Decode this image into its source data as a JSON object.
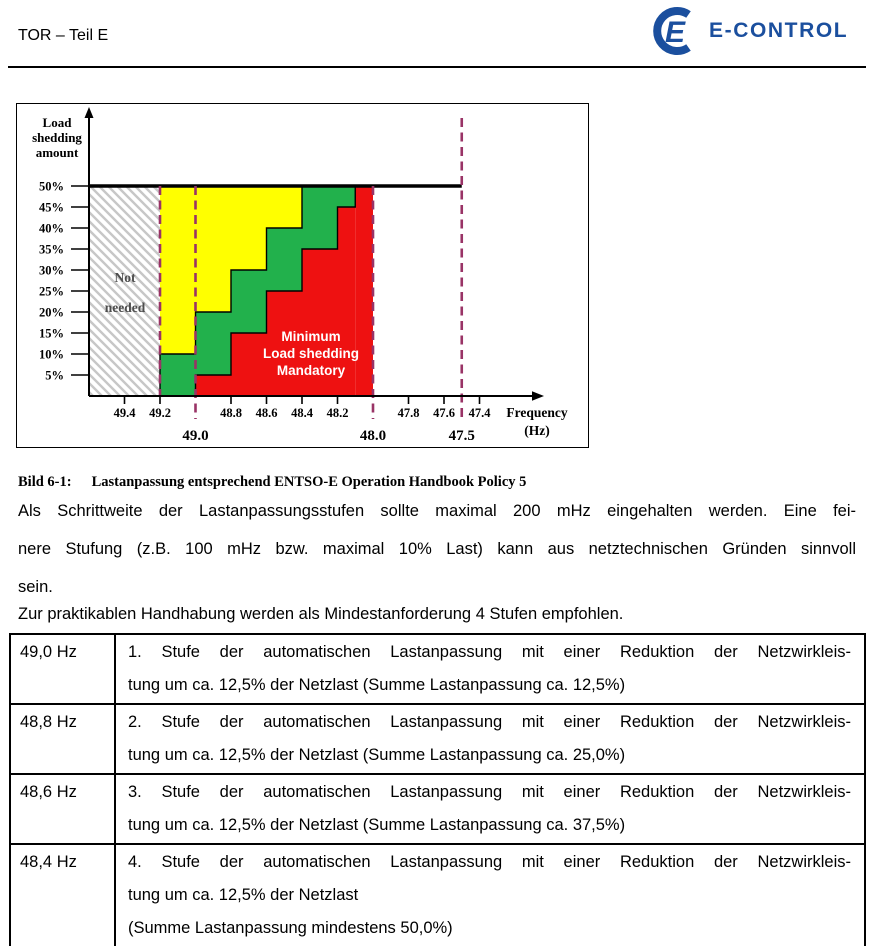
{
  "header": {
    "title": "TOR – Teil E",
    "logo": {
      "text": "E-CONTROL",
      "icon_letter": "E",
      "color": "#1B4F9E"
    }
  },
  "figure": {
    "caption_label": "Bild 6-1:",
    "caption_text": "Lastanpassung entsprechend ENTSO-E Operation Handbook Policy 5"
  },
  "chart_data": {
    "type": "area",
    "ylabel": "Load shedding amount",
    "ylabel_lines": [
      "Load",
      "shedding",
      "amount"
    ],
    "xlabel": "Frequency (Hz)",
    "xlabel_lines": [
      "Frequency",
      "(Hz)"
    ],
    "x_axis_reversed": true,
    "ylim_pct": [
      0,
      50
    ],
    "y_tick_step_pct": 5,
    "y_tick_labels": [
      "5%",
      "10%",
      "15%",
      "20%",
      "25%",
      "30%",
      "35%",
      "40%",
      "45%",
      "50%"
    ],
    "x_tick_labels": [
      "49.4",
      "49.2",
      "48.8",
      "48.6",
      "48.4",
      "48.2",
      "47.8",
      "47.6",
      "47.4"
    ],
    "x_major_labels": [
      "49.0",
      "48.0",
      "47.5"
    ],
    "max_line_pct": 50,
    "not_needed_label": "Not needed",
    "not_needed_lines": [
      "Not",
      "needed"
    ],
    "not_needed_range_hz": [
      49.6,
      49.2
    ],
    "mandatory_label": "Minimum Load shedding Mandatory",
    "mandatory_lines": [
      "Minimum",
      "Load shedding",
      "Mandatory"
    ],
    "steps": [
      {
        "from_hz": 49.2,
        "to_hz": 49.0,
        "red_top_pct": 0,
        "green_top_pct": 10,
        "yellow_top_pct": 50
      },
      {
        "from_hz": 49.0,
        "to_hz": 48.8,
        "red_top_pct": 5,
        "green_top_pct": 20,
        "yellow_top_pct": 50
      },
      {
        "from_hz": 48.8,
        "to_hz": 48.6,
        "red_top_pct": 15,
        "green_top_pct": 30,
        "yellow_top_pct": 50
      },
      {
        "from_hz": 48.6,
        "to_hz": 48.4,
        "red_top_pct": 25,
        "green_top_pct": 40,
        "yellow_top_pct": 50
      },
      {
        "from_hz": 48.4,
        "to_hz": 48.2,
        "red_top_pct": 35,
        "green_top_pct": 50,
        "yellow_top_pct": 50
      },
      {
        "from_hz": 48.2,
        "to_hz": 48.1,
        "red_top_pct": 45,
        "green_top_pct": 50,
        "yellow_top_pct": 50
      },
      {
        "from_hz": 48.1,
        "to_hz": 48.0,
        "red_top_pct": 50,
        "green_top_pct": 50,
        "yellow_top_pct": 50
      }
    ],
    "dashed_lines": [
      {
        "hz": 49.2,
        "full_height": false,
        "below_axis": false
      },
      {
        "hz": 49.0,
        "full_height": false,
        "below_axis": true
      },
      {
        "hz": 48.0,
        "full_height": false,
        "below_axis": true
      },
      {
        "hz": 47.5,
        "full_height": true,
        "below_axis": true
      }
    ],
    "colors": {
      "yellow": "#FFFF00",
      "green": "#22B14C",
      "red": "#EE1111",
      "dashed_line": "#993366",
      "hatch": "#C7C7C7",
      "mandatory_text": "#FFFFFF",
      "not_needed_text": "#4D4D4D"
    }
  },
  "paragraphs": [
    {
      "lines": [
        "Als Schrittweite der Lastanpassungsstufen sollte maximal 200 mHz eingehalten werden. Eine fei-",
        "nere Stufung (z.B. 100 mHz bzw. maximal 10% Last) kann aus netztechnischen Gründen sinnvoll",
        "sein."
      ]
    },
    {
      "lines": [
        "Zur praktikablen Handhabung werden als Mindestanforderung 4 Stufen empfohlen."
      ]
    }
  ],
  "table": {
    "rows": [
      {
        "freq": "49,0 Hz",
        "lines": [
          "1. Stufe der automatischen Lastanpassung mit einer Reduktion der Netzwirkleis-",
          "tung um ca. 12,5% der Netzlast (Summe Lastanpassung ca. 12,5%)"
        ]
      },
      {
        "freq": "48,8 Hz",
        "lines": [
          "2. Stufe der automatischen Lastanpassung mit einer Reduktion der Netzwirkleis-",
          "tung um ca. 12,5% der Netzlast (Summe Lastanpassung ca. 25,0%)"
        ]
      },
      {
        "freq": "48,6 Hz",
        "lines": [
          "3. Stufe der automatischen Lastanpassung mit einer Reduktion der Netzwirkleis-",
          "tung um ca. 12,5% der Netzlast (Summe Lastanpassung ca. 37,5%)"
        ]
      },
      {
        "freq": "48,4 Hz",
        "lines": [
          "4. Stufe der automatischen Lastanpassung mit einer Reduktion der Netzwirkleis-",
          "tung um ca. 12,5% der Netzlast",
          "(Summe Lastanpassung mindestens 50,0%)"
        ]
      }
    ]
  }
}
